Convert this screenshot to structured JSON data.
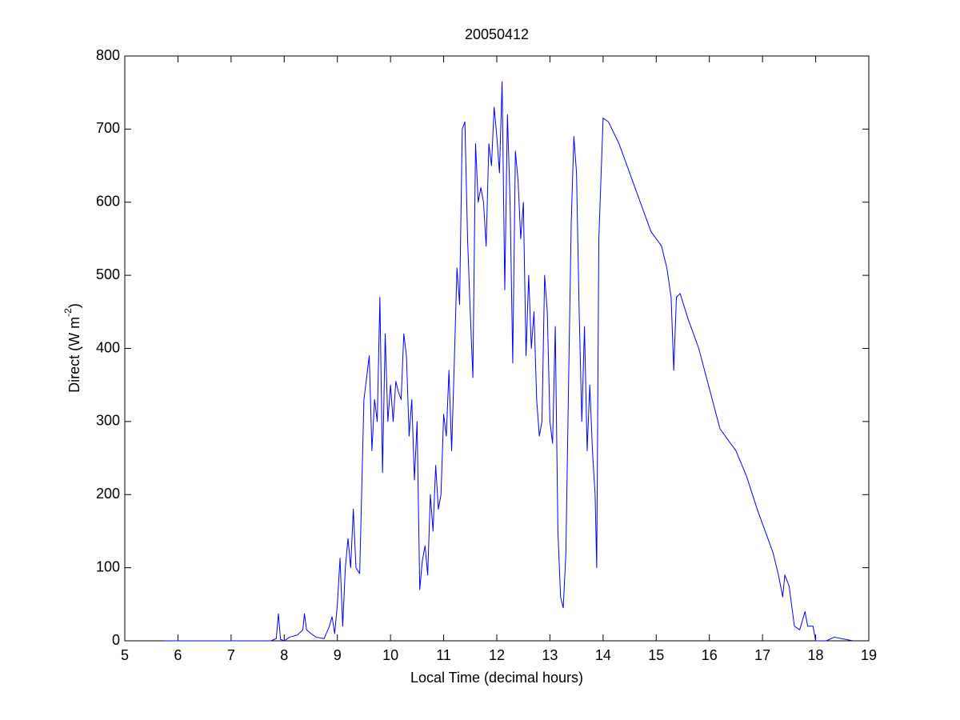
{
  "chart_data": {
    "type": "line",
    "title": "20050412",
    "xlabel": "Local Time (decimal hours)",
    "ylabel": [
      "Direct (W m",
      "-2",
      ")"
    ],
    "xlim": [
      5,
      19
    ],
    "ylim": [
      0,
      800
    ],
    "xticks": [
      5,
      6,
      7,
      8,
      9,
      10,
      11,
      12,
      13,
      14,
      15,
      16,
      17,
      18,
      19
    ],
    "yticks": [
      0,
      100,
      200,
      300,
      400,
      500,
      600,
      700,
      800
    ],
    "grid": false,
    "series": [
      {
        "color": "#0000ff",
        "x": [
          5.75,
          7.75,
          7.85,
          7.89,
          7.93,
          8.0,
          8.1,
          8.25,
          8.35,
          8.38,
          8.42,
          8.5,
          8.6,
          8.75,
          8.85,
          8.9,
          8.95,
          9.0,
          9.05,
          9.1,
          9.15,
          9.2,
          9.25,
          9.3,
          9.35,
          9.42,
          9.5,
          9.55,
          9.6,
          9.65,
          9.7,
          9.75,
          9.8,
          9.85,
          9.9,
          9.95,
          10.0,
          10.05,
          10.1,
          10.15,
          10.2,
          10.25,
          10.3,
          10.35,
          10.4,
          10.45,
          10.5,
          10.55,
          10.6,
          10.65,
          10.7,
          10.75,
          10.8,
          10.85,
          10.9,
          10.95,
          11.0,
          11.05,
          11.1,
          11.15,
          11.2,
          11.25,
          11.3,
          11.35,
          11.4,
          11.45,
          11.5,
          11.55,
          11.6,
          11.65,
          11.7,
          11.75,
          11.8,
          11.85,
          11.9,
          11.95,
          12.0,
          12.05,
          12.1,
          12.15,
          12.2,
          12.25,
          12.3,
          12.35,
          12.4,
          12.45,
          12.5,
          12.55,
          12.6,
          12.65,
          12.7,
          12.75,
          12.8,
          12.85,
          12.9,
          12.95,
          13.0,
          13.05,
          13.1,
          13.15,
          13.2,
          13.25,
          13.3,
          13.35,
          13.4,
          13.45,
          13.5,
          13.55,
          13.6,
          13.65,
          13.7,
          13.75,
          13.8,
          13.85,
          13.88,
          13.92,
          14.0,
          14.1,
          14.3,
          14.5,
          14.7,
          14.9,
          15.0,
          15.1,
          15.2,
          15.28,
          15.33,
          15.38,
          15.45,
          15.6,
          15.8,
          16.0,
          16.2,
          16.3,
          16.5,
          16.7,
          16.9,
          17.0,
          17.1,
          17.2,
          17.3,
          17.38,
          17.42,
          17.5,
          17.6,
          17.7,
          17.8,
          17.85,
          17.95,
          18.0,
          18.2,
          18.35,
          18.7
        ],
        "values": [
          0,
          0,
          3,
          37,
          2,
          0,
          5,
          8,
          15,
          37,
          15,
          10,
          5,
          3,
          20,
          33,
          10,
          50,
          113,
          20,
          100,
          140,
          100,
          180,
          100,
          92,
          330,
          360,
          390,
          260,
          330,
          300,
          470,
          230,
          420,
          300,
          350,
          300,
          355,
          340,
          330,
          420,
          390,
          280,
          330,
          220,
          300,
          70,
          110,
          130,
          90,
          200,
          150,
          240,
          180,
          200,
          310,
          280,
          370,
          260,
          380,
          510,
          460,
          700,
          710,
          550,
          450,
          360,
          680,
          600,
          620,
          600,
          540,
          680,
          650,
          730,
          690,
          640,
          765,
          480,
          720,
          600,
          380,
          670,
          630,
          550,
          600,
          390,
          500,
          400,
          450,
          330,
          280,
          300,
          500,
          450,
          300,
          270,
          430,
          150,
          60,
          45,
          120,
          350,
          570,
          690,
          640,
          450,
          300,
          430,
          260,
          350,
          260,
          200,
          100,
          550,
          715,
          710,
          680,
          640,
          600,
          560,
          550,
          540,
          510,
          470,
          370,
          470,
          475,
          440,
          400,
          345,
          290,
          280,
          260,
          225,
          180,
          160,
          140,
          120,
          90,
          60,
          90,
          75,
          20,
          15,
          40,
          20,
          20,
          0,
          0,
          5,
          0
        ]
      }
    ]
  }
}
